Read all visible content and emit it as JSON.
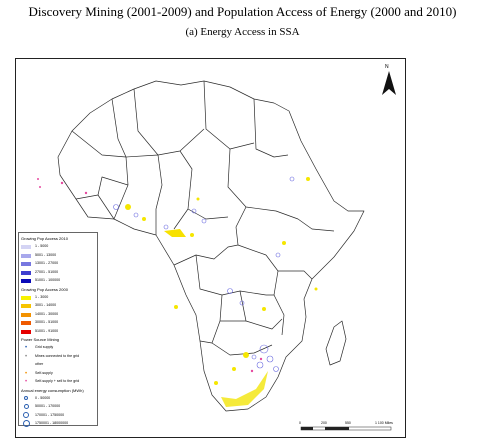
{
  "title": "Discovery Mining (2001-2009) and Population Access of Energy (2000 and 2010)",
  "subtitle": "(a) Energy Access in SSA",
  "north_label": "N",
  "legend": {
    "group_2010": {
      "heading": "Growing Pop Access 2010",
      "items": [
        {
          "label": "1 - 5000",
          "color": "#d4d4f4"
        },
        {
          "label": "5001 - 13000",
          "color": "#a8a8ec"
        },
        {
          "label": "13001 - 27000",
          "color": "#7777e0"
        },
        {
          "label": "27001 - 51000",
          "color": "#3f3fcf"
        },
        {
          "label": "51001 - 100000",
          "color": "#0a0ab8"
        }
      ]
    },
    "group_2000": {
      "heading": "Growing Pop Access 2000",
      "items": [
        {
          "label": "1 - 3000",
          "color": "#f7f200"
        },
        {
          "label": "3001 - 14000",
          "color": "#f7c400"
        },
        {
          "label": "14001 - 30000",
          "color": "#f39200"
        },
        {
          "label": "30001 - 51000",
          "color": "#ef5a00"
        },
        {
          "label": "51001 - 91000",
          "color": "#e60000"
        }
      ]
    },
    "mining": {
      "heading": "Power Source Mining",
      "items": [
        {
          "label": "Grid supply",
          "symbol": "dot-blue"
        },
        {
          "label": "Mines connected to the grid",
          "symbol": "dot-grey"
        },
        {
          "label": "other",
          "symbol": "none"
        },
        {
          "label": "Self-supply",
          "symbol": "dot-orange"
        },
        {
          "label": "Self-supply + sell to the grid",
          "symbol": "dot-pink"
        }
      ]
    },
    "consumption": {
      "heading": "Annual energy consumption (MWh)",
      "items": [
        {
          "label": "0 - 50000",
          "size": 3
        },
        {
          "label": "50001 - 170000",
          "size": 4
        },
        {
          "label": "170001 - 1750000",
          "size": 5
        },
        {
          "label": "1750001 - 18000000",
          "size": 6
        }
      ]
    }
  },
  "scalebar": {
    "ticks": [
      "0",
      "200",
      "550",
      "1 100 Miles"
    ]
  },
  "colors": {
    "country_border": "#2b2b2b",
    "blue_access": "#6a6ae0",
    "yellow_access": "#f5e600",
    "mine_circle": "#2a5fb0"
  }
}
